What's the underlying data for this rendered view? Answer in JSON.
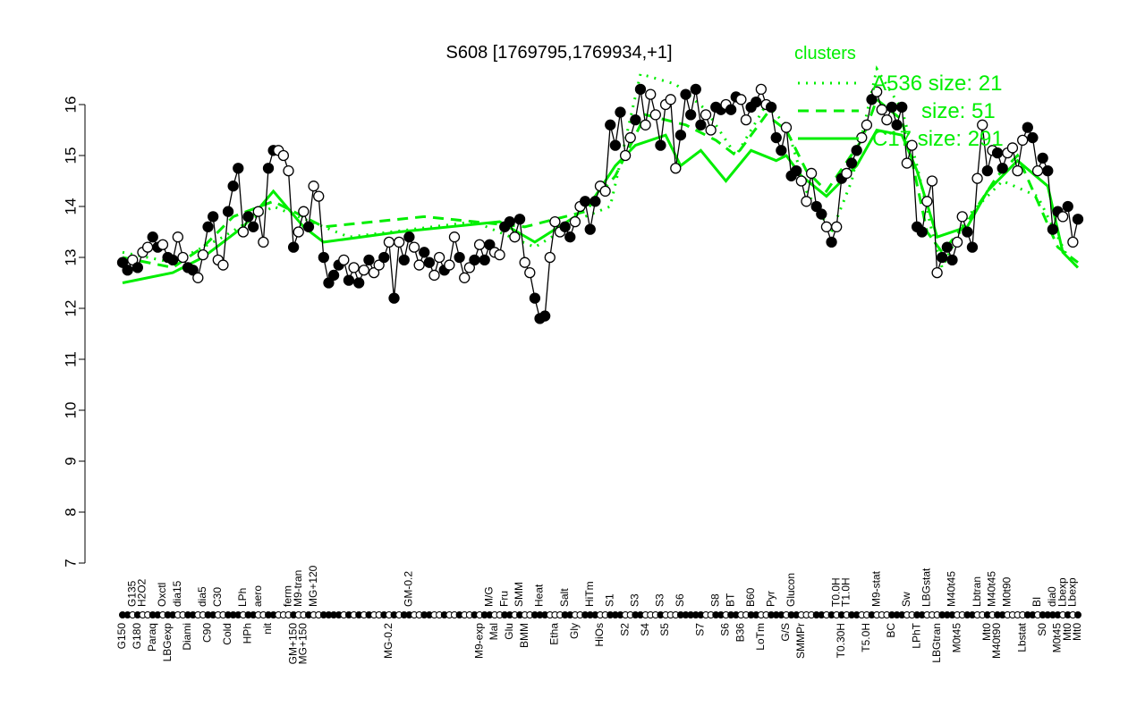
{
  "chart_data": {
    "type": "line",
    "title": "S608 [1769795,1769934,+1]",
    "xlabel": "",
    "ylabel": "",
    "ylim": [
      7,
      16
    ],
    "yticks": [
      7,
      8,
      9,
      10,
      11,
      12,
      13,
      14,
      15,
      16
    ],
    "grid": false,
    "legend": {
      "title": "clusters",
      "placement": "top-right",
      "entries": [
        {
          "label": "A536 size: 21",
          "style": "dotted"
        },
        {
          "label": "size: 51",
          "style": "dashed"
        },
        {
          "label": "C17 size: 291",
          "style": "solid"
        }
      ]
    },
    "colors": {
      "points": "#000000",
      "clusters": "#00ee00"
    },
    "points": [
      [
        "G150",
        12.9,
        1
      ],
      [
        "",
        12.75,
        1
      ],
      [
        "G135",
        12.95,
        0
      ],
      [
        "G180",
        12.8,
        1
      ],
      [
        "H2O2",
        13.1,
        0
      ],
      [
        "",
        13.2,
        0
      ],
      [
        "Paraq",
        13.4,
        1
      ],
      [
        "",
        13.2,
        1
      ],
      [
        "Oxctl",
        13.25,
        0
      ],
      [
        "LBGexp",
        13.0,
        1
      ],
      [
        "",
        12.95,
        1
      ],
      [
        "dia15",
        13.4,
        0
      ],
      [
        "",
        13.0,
        0
      ],
      [
        "Diami",
        12.8,
        1
      ],
      [
        "",
        12.75,
        1
      ],
      [
        "",
        12.6,
        0
      ],
      [
        "dia5",
        13.05,
        0
      ],
      [
        "C90",
        13.6,
        1
      ],
      [
        "",
        13.8,
        1
      ],
      [
        "C30",
        12.95,
        0
      ],
      [
        "",
        12.85,
        0
      ],
      [
        "Cold",
        13.9,
        1
      ],
      [
        "",
        14.4,
        1
      ],
      [
        "",
        14.75,
        1
      ],
      [
        "LPh",
        13.5,
        0
      ],
      [
        "HPh",
        13.8,
        1
      ],
      [
        "",
        13.6,
        1
      ],
      [
        "aero",
        13.9,
        0
      ],
      [
        "",
        13.3,
        0
      ],
      [
        "nit",
        14.75,
        1
      ],
      [
        "",
        15.1,
        1
      ],
      [
        "",
        15.1,
        0
      ],
      [
        "",
        15.0,
        0
      ],
      [
        "ferm",
        14.7,
        0
      ],
      [
        "GM+150",
        13.2,
        1
      ],
      [
        "M9-tran",
        13.5,
        0
      ],
      [
        "MG+150",
        13.9,
        0
      ],
      [
        "",
        13.6,
        1
      ],
      [
        "MG+120",
        14.4,
        0
      ],
      [
        "",
        14.2,
        0
      ],
      [
        "",
        13.0,
        1
      ],
      [
        "",
        12.5,
        1
      ],
      [
        "",
        12.65,
        1
      ],
      [
        "",
        12.85,
        1
      ],
      [
        "",
        12.95,
        0
      ],
      [
        "",
        12.55,
        1
      ],
      [
        "",
        12.8,
        0
      ],
      [
        "",
        12.5,
        1
      ],
      [
        "",
        12.75,
        0
      ],
      [
        "",
        12.95,
        1
      ],
      [
        "",
        12.7,
        0
      ],
      [
        "",
        12.85,
        0
      ],
      [
        "",
        13.0,
        1
      ],
      [
        "MG-0.2",
        13.3,
        0
      ],
      [
        "",
        12.2,
        1
      ],
      [
        "",
        13.3,
        0
      ],
      [
        "",
        12.95,
        1
      ],
      [
        "GM-0.2",
        13.4,
        1
      ],
      [
        "",
        13.2,
        0
      ],
      [
        "",
        12.85,
        0
      ],
      [
        "",
        13.1,
        1
      ],
      [
        "",
        12.9,
        1
      ],
      [
        "",
        12.65,
        0
      ],
      [
        "",
        13.0,
        0
      ],
      [
        "",
        12.75,
        1
      ],
      [
        "",
        12.85,
        0
      ],
      [
        "",
        13.4,
        0
      ],
      [
        "",
        13.0,
        1
      ],
      [
        "",
        12.6,
        0
      ],
      [
        "",
        12.8,
        0
      ],
      [
        "",
        12.95,
        1
      ],
      [
        "M9-exp",
        13.25,
        0
      ],
      [
        "",
        12.95,
        1
      ],
      [
        "M/G",
        13.25,
        1
      ],
      [
        "Mal",
        13.1,
        0
      ],
      [
        "",
        13.05,
        0
      ],
      [
        "Fru",
        13.6,
        1
      ],
      [
        "Glu",
        13.7,
        1
      ],
      [
        "",
        13.4,
        0
      ],
      [
        "SMM",
        13.75,
        1
      ],
      [
        "BMM",
        12.9,
        0
      ],
      [
        "",
        12.7,
        0
      ],
      [
        "",
        12.2,
        1
      ],
      [
        "Heat",
        11.8,
        1
      ],
      [
        "",
        11.85,
        1
      ],
      [
        "",
        13.0,
        0
      ],
      [
        "Etha",
        13.7,
        0
      ],
      [
        "",
        13.5,
        0
      ],
      [
        "Salt",
        13.6,
        1
      ],
      [
        "",
        13.4,
        1
      ],
      [
        "Gly",
        13.7,
        0
      ],
      [
        "",
        14.0,
        0
      ],
      [
        "",
        14.1,
        1
      ],
      [
        "HiTm",
        13.55,
        1
      ],
      [
        "",
        14.1,
        1
      ],
      [
        "HiOs",
        14.4,
        0
      ],
      [
        "",
        14.3,
        0
      ],
      [
        "S1",
        15.6,
        1
      ],
      [
        "",
        15.2,
        1
      ],
      [
        "",
        15.85,
        1
      ],
      [
        "S2",
        15.0,
        0
      ],
      [
        "",
        15.35,
        0
      ],
      [
        "S3",
        15.7,
        1
      ],
      [
        "",
        16.3,
        1
      ],
      [
        "S4",
        15.6,
        0
      ],
      [
        "",
        16.2,
        0
      ],
      [
        "",
        15.8,
        0
      ],
      [
        "S3",
        15.2,
        1
      ],
      [
        "S5",
        16.0,
        0
      ],
      [
        "",
        16.1,
        0
      ],
      [
        "",
        14.75,
        0
      ],
      [
        "S6",
        15.4,
        1
      ],
      [
        "",
        16.2,
        1
      ],
      [
        "",
        15.8,
        1
      ],
      [
        "",
        16.3,
        1
      ],
      [
        "S7",
        15.6,
        1
      ],
      [
        "",
        15.8,
        0
      ],
      [
        "",
        15.5,
        0
      ],
      [
        "S8",
        15.95,
        1
      ],
      [
        "",
        15.9,
        1
      ],
      [
        "S6",
        16.0,
        0
      ],
      [
        "BT",
        15.9,
        1
      ],
      [
        "",
        16.15,
        1
      ],
      [
        "B36",
        16.1,
        0
      ],
      [
        "",
        15.7,
        0
      ],
      [
        "B60",
        15.95,
        1
      ],
      [
        "",
        16.05,
        1
      ],
      [
        "LoTm",
        16.3,
        0
      ],
      [
        "",
        16.0,
        0
      ],
      [
        "Pyr",
        15.95,
        1
      ],
      [
        "",
        15.35,
        1
      ],
      [
        "",
        15.1,
        1
      ],
      [
        "G/S",
        15.55,
        0
      ],
      [
        "Glucon",
        14.6,
        1
      ],
      [
        "",
        14.7,
        1
      ],
      [
        "SMMPr",
        14.5,
        0
      ],
      [
        "",
        14.1,
        0
      ],
      [
        "",
        14.65,
        0
      ],
      [
        "",
        14.0,
        1
      ],
      [
        "",
        13.85,
        1
      ],
      [
        "",
        13.6,
        0
      ],
      [
        "",
        13.3,
        1
      ],
      [
        "T0.0H",
        13.6,
        0
      ],
      [
        "T0.30H",
        14.55,
        1
      ],
      [
        "T1.0H",
        14.65,
        0
      ],
      [
        "",
        14.85,
        1
      ],
      [
        "",
        15.1,
        1
      ],
      [
        "",
        15.35,
        0
      ],
      [
        "T5.0H",
        15.6,
        0
      ],
      [
        "",
        16.1,
        1
      ],
      [
        "M9-stat",
        16.25,
        0
      ],
      [
        "",
        15.9,
        0
      ],
      [
        "",
        15.7,
        0
      ],
      [
        "BC",
        15.95,
        1
      ],
      [
        "",
        15.6,
        1
      ],
      [
        "",
        15.95,
        1
      ],
      [
        "Sw",
        14.85,
        0
      ],
      [
        "",
        15.2,
        0
      ],
      [
        "LPhT",
        13.6,
        1
      ],
      [
        "",
        13.5,
        1
      ],
      [
        "LBGstat",
        14.1,
        0
      ],
      [
        "",
        14.5,
        0
      ],
      [
        "LBGtran",
        12.7,
        0
      ],
      [
        "",
        13.0,
        1
      ],
      [
        "",
        13.2,
        1
      ],
      [
        "M40t45",
        12.95,
        1
      ],
      [
        "M0t45",
        13.3,
        0
      ],
      [
        "",
        13.8,
        0
      ],
      [
        "",
        13.5,
        1
      ],
      [
        "",
        13.2,
        1
      ],
      [
        "Lbtran",
        14.55,
        0
      ],
      [
        "",
        15.6,
        0
      ],
      [
        "Mt0",
        14.7,
        1
      ],
      [
        "M40t45",
        15.1,
        0
      ],
      [
        "M40t90",
        15.05,
        1
      ],
      [
        "",
        14.75,
        1
      ],
      [
        "M0t90",
        15.05,
        0
      ],
      [
        "",
        15.15,
        0
      ],
      [
        "",
        14.7,
        0
      ],
      [
        "Lbstat",
        15.3,
        0
      ],
      [
        "",
        15.55,
        1
      ],
      [
        "",
        15.35,
        1
      ],
      [
        "BI",
        14.7,
        0
      ],
      [
        "S0",
        14.95,
        1
      ],
      [
        "",
        14.7,
        1
      ],
      [
        "dia0",
        13.55,
        1
      ],
      [
        "M0t45",
        13.9,
        1
      ],
      [
        "Lbexp",
        13.8,
        0
      ],
      [
        "Mt0",
        14.0,
        1
      ],
      [
        "Lbexp",
        13.3,
        0
      ],
      [
        "Mt0",
        13.75,
        1
      ]
    ],
    "cluster_lines": [
      {
        "style": "dotted",
        "points": [
          [
            0,
            13.1
          ],
          [
            10,
            12.9
          ],
          [
            20,
            13.4
          ],
          [
            30,
            14.0
          ],
          [
            45,
            13.4
          ],
          [
            70,
            13.7
          ],
          [
            82,
            13.2
          ],
          [
            92,
            13.8
          ],
          [
            97,
            14.0
          ],
          [
            103,
            16.6
          ],
          [
            110,
            16.4
          ],
          [
            116,
            15.9
          ],
          [
            122,
            15.0
          ],
          [
            128,
            16.0
          ],
          [
            132,
            15.6
          ],
          [
            136,
            14.3
          ],
          [
            141,
            13.5
          ],
          [
            145,
            14.5
          ],
          [
            150,
            16.7
          ],
          [
            155,
            15.9
          ],
          [
            158,
            14.8
          ],
          [
            161,
            13.5
          ],
          [
            163,
            12.8
          ],
          [
            168,
            13.8
          ],
          [
            175,
            14.5
          ],
          [
            182,
            14.2
          ],
          [
            188,
            13.0
          ],
          [
            190,
            12.8
          ]
        ]
      },
      {
        "style": "dashed",
        "points": [
          [
            0,
            13.0
          ],
          [
            10,
            12.8
          ],
          [
            16,
            13.2
          ],
          [
            22,
            13.8
          ],
          [
            30,
            14.1
          ],
          [
            40,
            13.6
          ],
          [
            60,
            13.8
          ],
          [
            80,
            13.6
          ],
          [
            92,
            13.9
          ],
          [
            98,
            14.6
          ],
          [
            104,
            15.8
          ],
          [
            112,
            15.6
          ],
          [
            118,
            15.3
          ],
          [
            122,
            15.0
          ],
          [
            128,
            15.8
          ],
          [
            132,
            15.5
          ],
          [
            136,
            14.7
          ],
          [
            140,
            14.3
          ],
          [
            147,
            15.3
          ],
          [
            150,
            16.1
          ],
          [
            155,
            15.7
          ],
          [
            157,
            14.9
          ],
          [
            160,
            13.5
          ],
          [
            163,
            13.1
          ],
          [
            168,
            13.7
          ],
          [
            174,
            14.6
          ],
          [
            178,
            15.0
          ],
          [
            182,
            14.1
          ],
          [
            186,
            13.2
          ],
          [
            190,
            12.9
          ]
        ]
      },
      {
        "style": "solid",
        "points": [
          [
            0,
            12.5
          ],
          [
            10,
            12.7
          ],
          [
            16,
            13.0
          ],
          [
            20,
            13.3
          ],
          [
            24,
            13.6
          ],
          [
            30,
            14.3
          ],
          [
            36,
            13.6
          ],
          [
            40,
            13.3
          ],
          [
            55,
            13.5
          ],
          [
            75,
            13.7
          ],
          [
            82,
            13.3
          ],
          [
            90,
            13.8
          ],
          [
            94,
            14.2
          ],
          [
            98,
            14.8
          ],
          [
            102,
            15.2
          ],
          [
            108,
            15.4
          ],
          [
            111,
            14.8
          ],
          [
            115,
            15.1
          ],
          [
            120,
            14.5
          ],
          [
            125,
            15.1
          ],
          [
            130,
            14.9
          ],
          [
            132,
            15.0
          ],
          [
            135,
            14.6
          ],
          [
            140,
            14.2
          ],
          [
            146,
            14.8
          ],
          [
            150,
            15.5
          ],
          [
            155,
            15.4
          ],
          [
            158,
            14.7
          ],
          [
            162,
            13.4
          ],
          [
            168,
            13.6
          ],
          [
            172,
            14.3
          ],
          [
            178,
            14.9
          ],
          [
            184,
            14.4
          ],
          [
            187,
            13.1
          ],
          [
            190,
            12.8
          ]
        ]
      }
    ]
  }
}
